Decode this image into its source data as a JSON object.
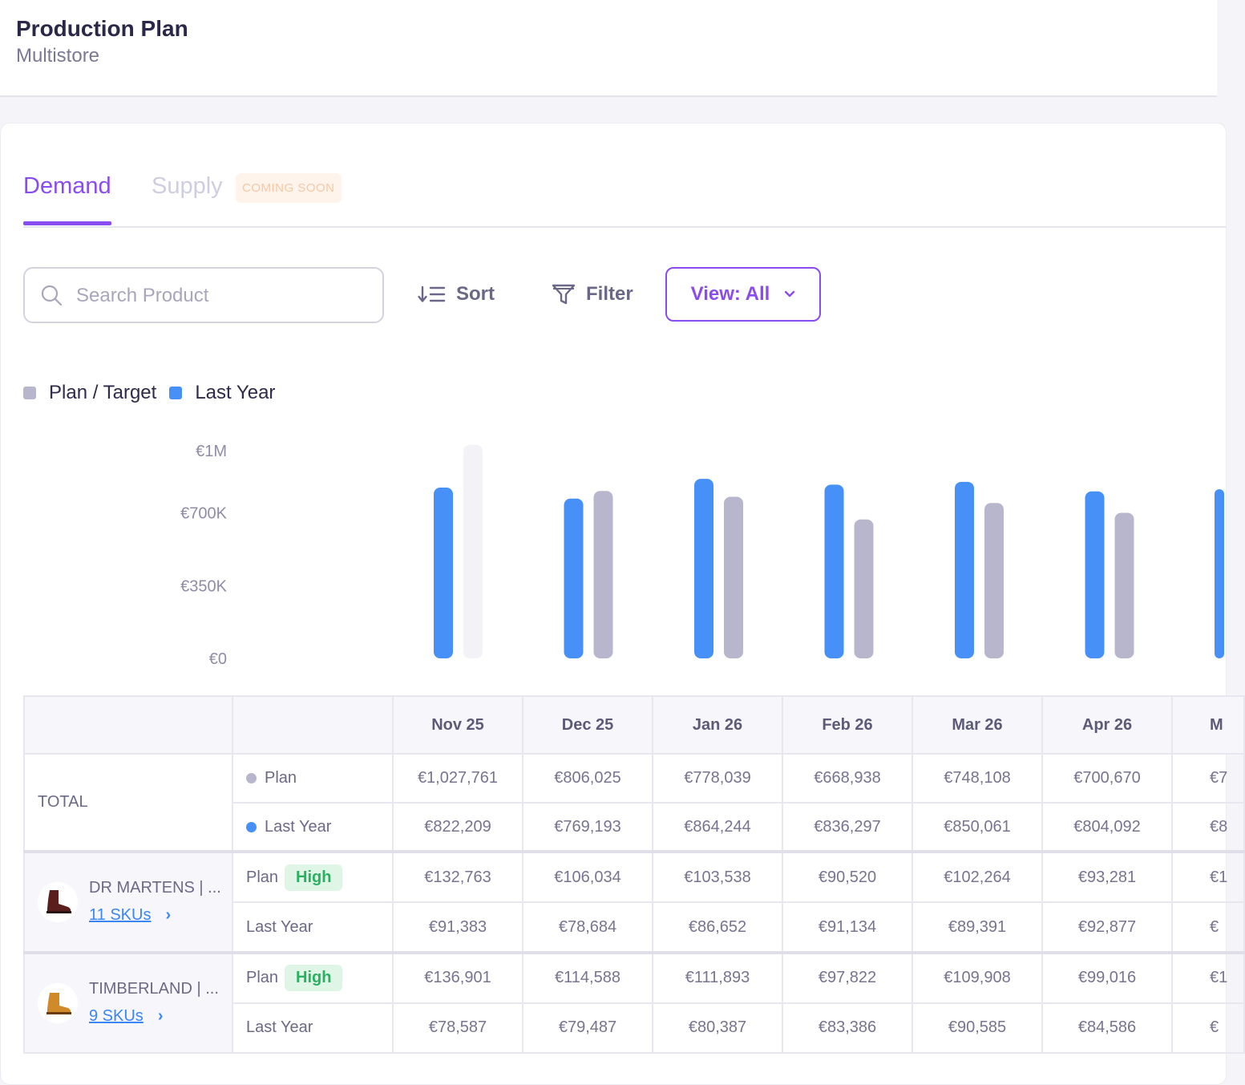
{
  "header": {
    "title": "Production Plan",
    "subtitle": "Multistore"
  },
  "tabs": {
    "demand": "Demand",
    "supply": "Supply",
    "coming_soon": "COMING SOON"
  },
  "toolbar": {
    "search_placeholder": "Search Product",
    "sort_label": "Sort",
    "filter_label": "Filter",
    "view_label": "View: All"
  },
  "colors": {
    "accent": "#8a4bf0",
    "plan": "#b8b6cc",
    "last_year": "#4790f7",
    "high_bg": "#dff5e6",
    "high_fg": "#2bb061"
  },
  "chart_data": {
    "type": "bar",
    "legend": [
      "Plan / Target",
      "Last Year"
    ],
    "y_ticks": [
      "€1M",
      "€700K",
      "€350K",
      "€0"
    ],
    "y_tick_values": [
      1000000,
      700000,
      350000,
      0
    ],
    "ylim": [
      0,
      1000000
    ],
    "categories": [
      "Nov 25",
      "Dec 25",
      "Jan 26",
      "Feb 26",
      "Mar 26",
      "Apr 26"
    ],
    "series": [
      {
        "name": "Last Year",
        "values": [
          822209,
          769193,
          864244,
          836297,
          850061,
          804092
        ]
      },
      {
        "name": "Plan / Target",
        "values": [
          1027761,
          806025,
          778039,
          668938,
          748108,
          700670
        ]
      }
    ]
  },
  "table": {
    "columns": [
      "Nov 25",
      "Dec 25",
      "Jan 26",
      "Feb 26",
      "Mar 26",
      "Apr 26",
      "M"
    ],
    "total": {
      "label": "TOTAL",
      "plan_label": "Plan",
      "last_year_label": "Last Year",
      "plan": [
        "€1,027,761",
        "€806,025",
        "€778,039",
        "€668,938",
        "€748,108",
        "€700,670",
        "€7"
      ],
      "last_year": [
        "€822,209",
        "€769,193",
        "€864,244",
        "€836,297",
        "€850,061",
        "€804,092",
        "€8"
      ]
    },
    "products": [
      {
        "name": "DR MARTENS | ...",
        "skus": "11 SKUs",
        "plan_label": "Plan",
        "badge": "High",
        "last_year_label": "Last Year",
        "plan": [
          "€132,763",
          "€106,034",
          "€103,538",
          "€90,520",
          "€102,264",
          "€93,281",
          "€1"
        ],
        "last_year": [
          "€91,383",
          "€78,684",
          "€86,652",
          "€91,134",
          "€89,391",
          "€92,877",
          "€"
        ]
      },
      {
        "name": "TIMBERLAND | ...",
        "skus": "9 SKUs",
        "plan_label": "Plan",
        "badge": "High",
        "last_year_label": "Last Year",
        "plan": [
          "€136,901",
          "€114,588",
          "€111,893",
          "€97,822",
          "€109,908",
          "€99,016",
          "€1"
        ],
        "last_year": [
          "€78,587",
          "€79,487",
          "€80,387",
          "€83,386",
          "€90,585",
          "€84,586",
          "€"
        ]
      }
    ]
  }
}
